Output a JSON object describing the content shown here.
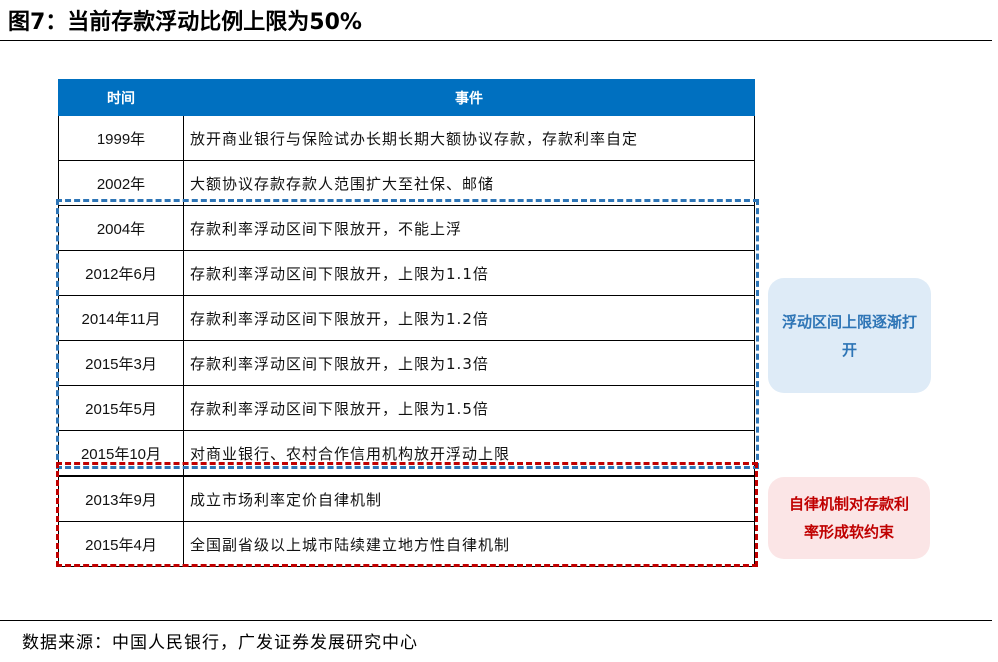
{
  "title": "图7：当前存款浮动比例上限为50%",
  "table": {
    "headers": [
      "时间",
      "事件"
    ],
    "rows": [
      {
        "time": "1999年",
        "event": "放开商业银行与保险试办长期长期大额协议存款，存款利率自定"
      },
      {
        "time": "2002年",
        "event": "大额协议存款存款人范围扩大至社保、邮储"
      },
      {
        "time": "2004年",
        "event": "存款利率浮动区间下限放开，不能上浮"
      },
      {
        "time": "2012年6月",
        "event": "存款利率浮动区间下限放开，上限为1.1倍"
      },
      {
        "time": "2014年11月",
        "event": "存款利率浮动区间下限放开，上限为1.2倍"
      },
      {
        "time": "2015年3月",
        "event": "存款利率浮动区间下限放开，上限为1.3倍"
      },
      {
        "time": "2015年5月",
        "event": "存款利率浮动区间下限放开，上限为1.5倍"
      },
      {
        "time": "2015年10月",
        "event": "对商业银行、农村合作信用机构放开浮动上限"
      },
      {
        "time": "2013年9月",
        "event": "成立市场利率定价自律机制"
      },
      {
        "time": "2015年4月",
        "event": "全国副省级以上城市陆续建立地方性自律机制"
      }
    ]
  },
  "callouts": {
    "float": {
      "text": "浮动区间上限逐渐打开",
      "color": "#2e75b6",
      "bg": "#deebf7"
    },
    "self": {
      "text": "自律机制对存款利率形成软约束",
      "color": "#c00000",
      "bg": "#fbe5e6"
    }
  },
  "source": "数据来源：中国人民银行，广发证券发展研究中心"
}
